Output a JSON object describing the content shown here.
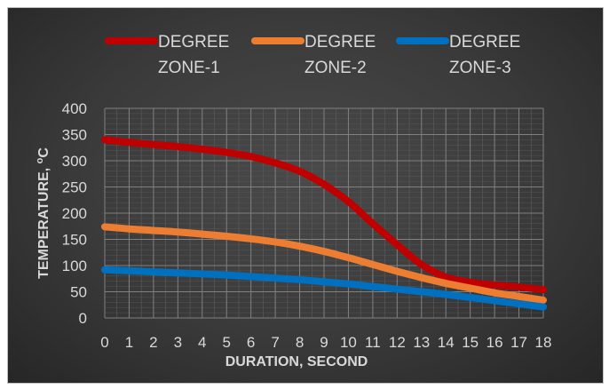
{
  "chart_data": {
    "type": "line",
    "xlabel": "DURATION, SECOND",
    "ylabel_main": "TEMPERATURE, ",
    "ylabel_sup": "o",
    "ylabel_tail": "C",
    "xlim": [
      0,
      18
    ],
    "ylim": [
      0,
      400
    ],
    "x_ticks": [
      0,
      1,
      2,
      3,
      4,
      5,
      6,
      7,
      8,
      9,
      10,
      11,
      12,
      13,
      14,
      15,
      16,
      17,
      18
    ],
    "y_ticks": [
      0,
      50,
      100,
      150,
      200,
      250,
      300,
      350,
      400
    ],
    "grid": true,
    "legend_position": "top",
    "x": [
      0,
      1,
      2,
      3,
      4,
      5,
      6,
      7,
      8,
      9,
      10,
      11,
      12,
      13,
      14,
      15,
      16,
      17,
      18
    ],
    "series": [
      {
        "name_line1": "DEGREE",
        "name_line2": "ZONE-1",
        "color": "#c00000",
        "values": [
          340,
          335,
          331,
          327,
          322,
          316,
          308,
          296,
          280,
          255,
          222,
          180,
          140,
          102,
          78,
          68,
          63,
          59,
          54
        ]
      },
      {
        "name_line1": "DEGREE",
        "name_line2": "ZONE-2",
        "color": "#ed7d31",
        "values": [
          174,
          170,
          167,
          164,
          160,
          156,
          151,
          145,
          137,
          127,
          115,
          102,
          89,
          77,
          66,
          57,
          48,
          41,
          34
        ]
      },
      {
        "name_line1": "DEGREE",
        "name_line2": "ZONE-3",
        "color": "#0070c0",
        "values": [
          92,
          90,
          88,
          86,
          84,
          82,
          79,
          76,
          73,
          69,
          65,
          60,
          55,
          50,
          45,
          39,
          33,
          27,
          21
        ]
      }
    ]
  }
}
